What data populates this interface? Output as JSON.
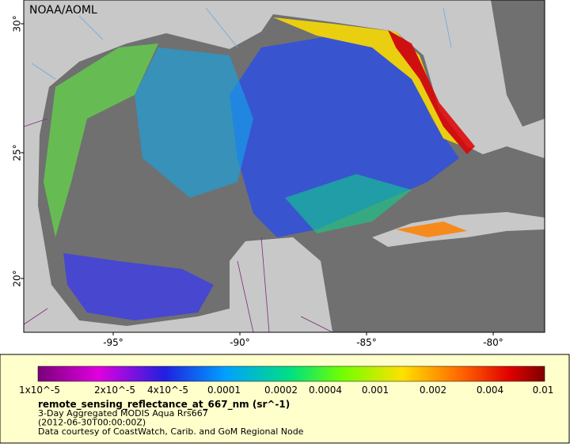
{
  "map": {
    "label": "NOAA/AOML",
    "lat_ticks": [
      "30°",
      "25°",
      "20°"
    ],
    "lon_ticks": [
      "-95°",
      "-90°",
      "-85°",
      "-80°"
    ]
  },
  "legend": {
    "colorbar_ticks": [
      "1x10^-5",
      "2x10^-5",
      "4x10^-5",
      "0.0001",
      "0.0002",
      "0.0004",
      "0.001",
      "0.002",
      "0.004",
      "0.01"
    ],
    "title": "remote_sensing_reflectance_at_667_nm (sr^-1)",
    "lines": [
      "3-Day Aggregated MODIS Aqua Rrs667",
      "(2012-06-30T00:00:00Z)",
      "Data courtesy of CoastWatch, Carib. and GoM Regional Node"
    ]
  }
}
